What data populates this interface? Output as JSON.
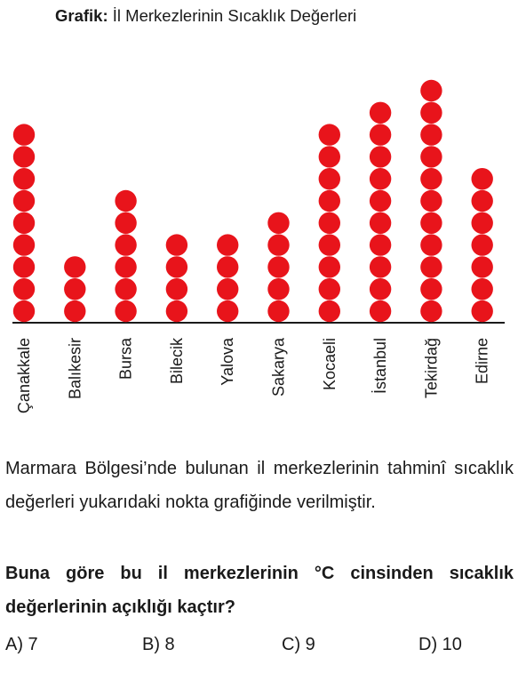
{
  "chart_data": {
    "type": "dot plot",
    "title_prefix": "Grafik:",
    "title": "İl Merkezlerinin Sıcaklık Değerleri",
    "categories": [
      "Çanakkale",
      "Balıkesir",
      "Bursa",
      "Bilecik",
      "Yalova",
      "Sakarya",
      "Kocaeli",
      "İstanbul",
      "Tekirdağ",
      "Edirne"
    ],
    "values": [
      9,
      3,
      6,
      4,
      4,
      5,
      9,
      10,
      11,
      7
    ],
    "dot_color": "#e8141b",
    "axis": "baseline only, no ticks or numbers"
  },
  "question": {
    "intro": "Marmara Bölgesi’nde bulunan il merkezlerinin tahminî sıcaklık değerleri yukarıdaki nokta grafiğinde verilmiştir.",
    "prompt": "Buna göre bu il merkezlerinin °C cinsinden sıcaklık değerlerinin açıklığı kaçtır?",
    "options": [
      "A) 7",
      "B) 8",
      "C) 9",
      "D) 10"
    ]
  }
}
